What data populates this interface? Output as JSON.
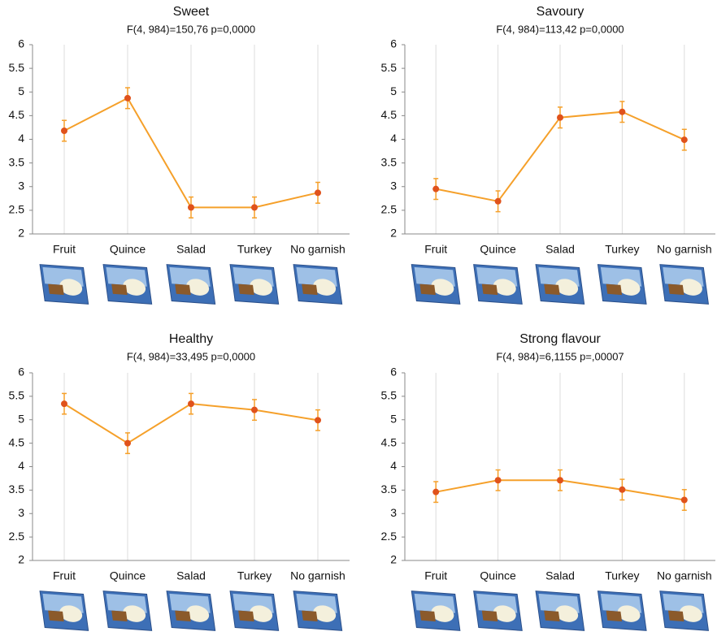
{
  "chart_data": [
    {
      "type": "line",
      "title": "Sweet",
      "subtitle": "F(4, 984)=150,76 p=0,0000",
      "categories": [
        "Fruit",
        "Quince",
        "Salad",
        "Turkey",
        "No garnish"
      ],
      "series": [
        {
          "color": "#f5a02a",
          "marker_color": "#e0521b",
          "values": [
            4.18,
            4.87,
            2.56,
            2.56,
            2.87
          ],
          "errors": [
            0.22,
            0.22,
            0.22,
            0.22,
            0.22
          ]
        }
      ],
      "ylim": [
        2,
        6
      ],
      "yticks": [
        2,
        2.5,
        3,
        3.5,
        4,
        4.5,
        5,
        5.5,
        6
      ],
      "grid": true
    },
    {
      "type": "line",
      "title": "Savoury",
      "subtitle": "F(4, 984)=113,42 p=0,0000",
      "categories": [
        "Fruit",
        "Quince",
        "Salad",
        "Turkey",
        "No garnish"
      ],
      "series": [
        {
          "color": "#f5a02a",
          "marker_color": "#e0521b",
          "values": [
            2.95,
            2.69,
            4.46,
            4.58,
            3.99
          ],
          "errors": [
            0.22,
            0.22,
            0.22,
            0.22,
            0.22
          ]
        }
      ],
      "ylim": [
        2,
        6
      ],
      "yticks": [
        2,
        2.5,
        3,
        3.5,
        4,
        4.5,
        5,
        5.5,
        6
      ],
      "grid": true
    },
    {
      "type": "line",
      "title": "Healthy",
      "subtitle": "F(4, 984)=33,495 p=0,0000",
      "categories": [
        "Fruit",
        "Quince",
        "Salad",
        "Turkey",
        "No garnish"
      ],
      "series": [
        {
          "color": "#f5a02a",
          "marker_color": "#e0521b",
          "values": [
            5.34,
            4.5,
            5.34,
            5.21,
            4.99
          ],
          "errors": [
            0.22,
            0.22,
            0.22,
            0.22,
            0.22
          ]
        }
      ],
      "ylim": [
        2,
        6
      ],
      "yticks": [
        2,
        2.5,
        3,
        3.5,
        4,
        4.5,
        5,
        5.5,
        6
      ],
      "grid": true
    },
    {
      "type": "line",
      "title": "Strong flavour",
      "subtitle": "F(4, 984)=6,1155 p=,00007",
      "categories": [
        "Fruit",
        "Quince",
        "Salad",
        "Turkey",
        "No garnish"
      ],
      "series": [
        {
          "color": "#f5a02a",
          "marker_color": "#e0521b",
          "values": [
            3.46,
            3.71,
            3.71,
            3.51,
            3.29
          ],
          "errors": [
            0.22,
            0.22,
            0.22,
            0.22,
            0.22
          ]
        }
      ],
      "ylim": [
        2,
        6
      ],
      "yticks": [
        2,
        2.5,
        3,
        3.5,
        4,
        4.5,
        5,
        5.5,
        6
      ],
      "grid": true
    }
  ]
}
